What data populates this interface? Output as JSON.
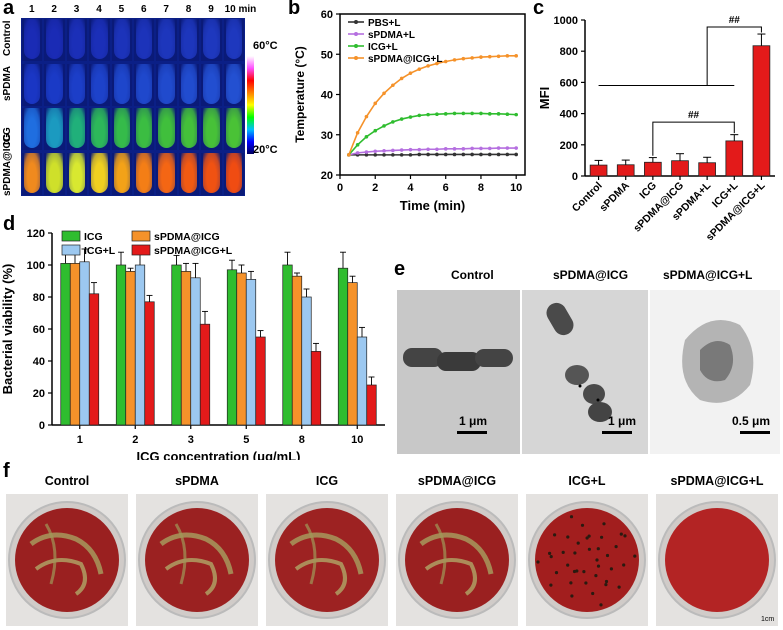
{
  "panel_labels": {
    "a": "a",
    "b": "b",
    "c": "c",
    "d": "d",
    "e": "e",
    "f": "f"
  },
  "panel_a": {
    "time_labels": [
      "1",
      "2",
      "3",
      "4",
      "5",
      "6",
      "7",
      "8",
      "9",
      "10 min"
    ],
    "row_labels": [
      "Control",
      "sPDMA",
      "ICG",
      "sPDMA@ICG"
    ],
    "scale_high": "60°C",
    "scale_low": "20°C"
  },
  "colors": {
    "orange": "#f5922a",
    "green": "#2fbd2f",
    "purple": "#b56fe0",
    "black": "#333333",
    "red": "#e31a1a",
    "lightblue": "#9cc8f0",
    "darkgray": "#333333"
  },
  "chart_data": [
    {
      "id": "b",
      "type": "line",
      "title": "",
      "xlabel": "Time (min)",
      "ylabel": "Temperature (°C)",
      "xlim": [
        0,
        10.5
      ],
      "ylim": [
        20,
        60
      ],
      "xticks": [
        "0",
        "2",
        "4",
        "6",
        "8",
        "10"
      ],
      "yticks": [
        "20",
        "30",
        "40",
        "50",
        "60"
      ],
      "x": [
        0.5,
        1,
        1.5,
        2,
        2.5,
        3,
        3.5,
        4,
        4.5,
        5,
        5.5,
        6,
        6.5,
        7,
        7.5,
        8,
        8.5,
        9,
        9.5,
        10
      ],
      "series": [
        {
          "name": "PBS+L",
          "color": "#333333",
          "values": [
            25,
            25,
            25,
            25,
            25,
            25,
            25,
            25,
            25.1,
            25.1,
            25.1,
            25.1,
            25.1,
            25.1,
            25.1,
            25.1,
            25.1,
            25.1,
            25.1,
            25.1
          ]
        },
        {
          "name": "sPDMA+L",
          "color": "#b56fe0",
          "values": [
            25,
            25.5,
            25.7,
            25.9,
            26,
            26.1,
            26.2,
            26.3,
            26.3,
            26.4,
            26.4,
            26.5,
            26.5,
            26.5,
            26.6,
            26.6,
            26.6,
            26.7,
            26.7,
            26.7
          ]
        },
        {
          "name": "ICG+L",
          "color": "#2fbd2f",
          "values": [
            25,
            27.5,
            29.5,
            31,
            32.2,
            33.2,
            33.9,
            34.4,
            34.8,
            35,
            35.1,
            35.2,
            35.3,
            35.3,
            35.3,
            35.3,
            35.2,
            35.2,
            35.1,
            35
          ]
        },
        {
          "name": "sPDMA@ICG+L",
          "color": "#f5922a",
          "values": [
            25,
            30.5,
            34.5,
            37.8,
            40.3,
            42.3,
            44,
            45.3,
            46.3,
            47.1,
            47.7,
            48.2,
            48.6,
            48.9,
            49.1,
            49.3,
            49.4,
            49.5,
            49.6,
            49.6
          ]
        }
      ]
    },
    {
      "id": "c",
      "type": "bar",
      "xlabel": "",
      "ylabel": "MFI",
      "ylim": [
        0,
        1000
      ],
      "yticks": [
        "0",
        "200",
        "400",
        "600",
        "800",
        "1000"
      ],
      "categories": [
        "Control",
        "sPDMA",
        "ICG",
        "sPDMA@ICG",
        "sPDMA+L",
        "ICG+L",
        "sPDMA@ICG+L"
      ],
      "values": [
        70,
        72,
        88,
        98,
        85,
        225,
        835
      ],
      "errors": [
        30,
        30,
        30,
        45,
        35,
        40,
        75
      ],
      "significance": [
        {
          "label": "##",
          "from": "ICG",
          "to": "ICG+L"
        },
        {
          "label": "##",
          "from": "group",
          "to": "sPDMA@ICG+L"
        }
      ]
    },
    {
      "id": "d",
      "type": "bar",
      "xlabel": "ICG concentration (μg/mL)",
      "ylabel": "Bacterial viability (%)",
      "ylim": [
        0,
        120
      ],
      "yticks": [
        "0",
        "20",
        "40",
        "60",
        "80",
        "100",
        "120"
      ],
      "categories": [
        "1",
        "2",
        "3",
        "5",
        "8",
        "10"
      ],
      "series": [
        {
          "name": "ICG",
          "color": "#2fbd2f",
          "values": [
            101,
            100,
            100,
            97,
            100,
            98
          ],
          "errors": [
            7,
            8,
            6,
            6,
            8,
            10
          ]
        },
        {
          "name": "sPDMA@ICG",
          "color": "#f5922a",
          "values": [
            101,
            96,
            96,
            95,
            93,
            89
          ],
          "errors": [
            6,
            2,
            5,
            5,
            2,
            4
          ]
        },
        {
          "name": "ICG+L",
          "color": "#9cc8f0",
          "values": [
            102,
            100,
            92,
            91,
            80,
            55
          ],
          "errors": [
            8,
            8,
            9,
            5,
            5,
            6
          ]
        },
        {
          "name": "sPDMA@ICG+L",
          "color": "#e31a1a",
          "values": [
            82,
            77,
            63,
            55,
            46,
            25
          ],
          "errors": [
            7,
            4,
            8,
            4,
            5,
            5
          ]
        }
      ]
    }
  ],
  "panel_e": {
    "titles": [
      "Control",
      "sPDMA@ICG",
      "sPDMA@ICG+L"
    ],
    "scale_bars": [
      "1 μm",
      "1 μm",
      "0.5 μm"
    ]
  },
  "panel_f": {
    "titles": [
      "Control",
      "sPDMA",
      "ICG",
      "sPDMA@ICG",
      "ICG+L",
      "sPDMA@ICG+L"
    ],
    "scale_note": "1cm"
  }
}
